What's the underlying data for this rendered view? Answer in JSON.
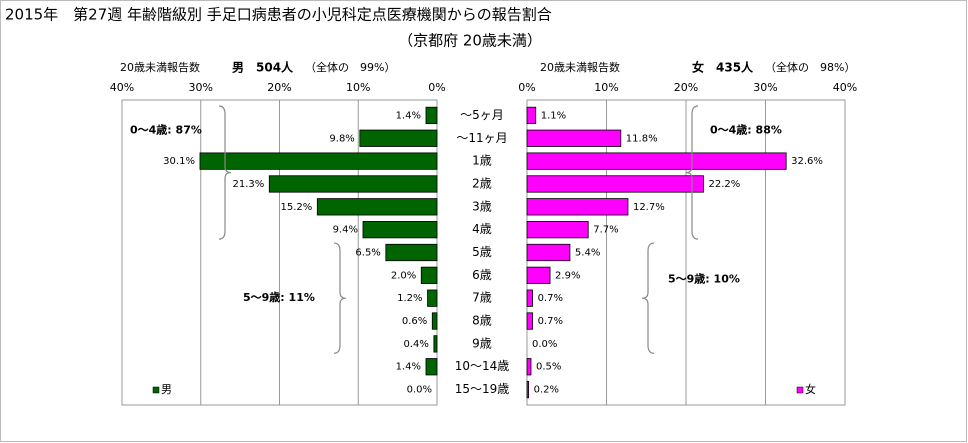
{
  "chart_data": {
    "type": "bar",
    "title": "2015年　第27週 年齢階級別 手足口病患者の小児科定点医療機関からの報告割合",
    "subtitle": "（京都府 20歳未満）",
    "categories": [
      "～5ヶ月",
      "～11ヶ月",
      "1歳",
      "2歳",
      "3歳",
      "4歳",
      "5歳",
      "6歳",
      "7歳",
      "8歳",
      "9歳",
      "10～14歳",
      "15～19歳"
    ],
    "series": [
      {
        "name": "男",
        "color": "#006400",
        "header": [
          "20歳未満報告数",
          "男　504人",
          "（全体の　99%）"
        ],
        "annotations": [
          "0～4歳: 87%",
          "5～9歳: 11%"
        ],
        "values": [
          1.4,
          9.8,
          30.1,
          21.3,
          15.2,
          9.4,
          6.5,
          2.0,
          1.2,
          0.6,
          0.4,
          1.4,
          0.0
        ],
        "value_labels": [
          "1.4%",
          "9.8%",
          "30.1%",
          "21.3%",
          "15.2%",
          "9.4%",
          "6.5%",
          "2.0%",
          "1.2%",
          "0.6%",
          "0.4%",
          "1.4%",
          "0.0%"
        ]
      },
      {
        "name": "女",
        "color": "#ff00ff",
        "header": [
          "20歳未満報告数",
          "女　435人",
          "（全体の　98%）"
        ],
        "annotations": [
          "0～4歳: 88%",
          "5～9歳: 10%"
        ],
        "values": [
          1.1,
          11.8,
          32.6,
          22.2,
          12.7,
          7.7,
          5.4,
          2.9,
          0.7,
          0.7,
          0.0,
          0.5,
          0.2
        ],
        "value_labels": [
          "1.1%",
          "11.8%",
          "32.6%",
          "22.2%",
          "12.7%",
          "7.7%",
          "5.4%",
          "2.9%",
          "0.7%",
          "0.7%",
          "0.0%",
          "0.5%",
          "0.2%"
        ]
      }
    ],
    "xlim": [
      0,
      40
    ],
    "xticks": [
      {
        "value": 0,
        "label": "0%"
      },
      {
        "value": 10,
        "label": "10%"
      },
      {
        "value": 20,
        "label": "20%"
      },
      {
        "value": 30,
        "label": "30%"
      },
      {
        "value": 40,
        "label": "40%"
      }
    ],
    "grid": true
  }
}
